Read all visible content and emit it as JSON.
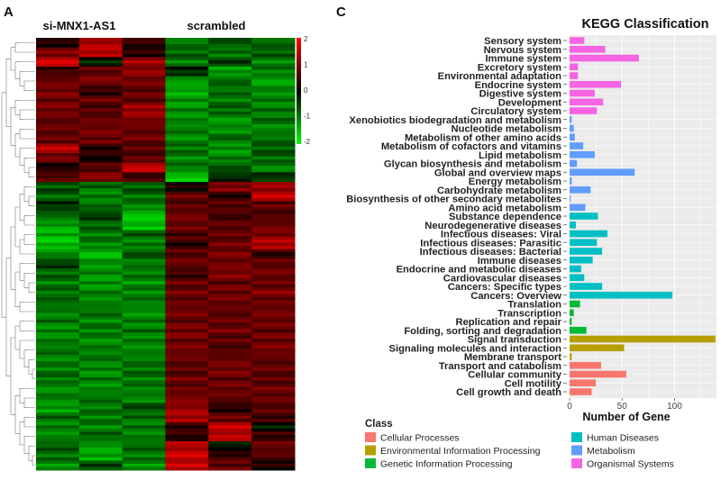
{
  "panels": {
    "a": "A",
    "c": "C"
  },
  "chart_data": [
    {
      "type": "heatmap",
      "column_groups": [
        "si-MNX1-AS1",
        "scrambled"
      ],
      "columns_per_group": 3,
      "colorbar": {
        "ticks": [
          "2",
          "1",
          "0",
          "-1",
          "-2"
        ],
        "range": [
          -2,
          2
        ],
        "low_color": "#00ff00",
        "mid_color": "#000000",
        "high_color": "#ff0000"
      },
      "row_dendrogram": true,
      "values": [
        [
          0.3,
          1.6,
          0.5,
          -1.2,
          -0.8,
          -1.0
        ],
        [
          1.2,
          1.8,
          0.4,
          -1.0,
          -1.1,
          -0.9
        ],
        [
          2.0,
          -0.3,
          1.5,
          -1.2,
          -0.6,
          -1.3
        ],
        [
          0.6,
          0.9,
          1.4,
          -0.4,
          -1.5,
          -1.2
        ],
        [
          1.0,
          1.2,
          1.1,
          -1.5,
          -1.0,
          -1.6
        ],
        [
          1.1,
          0.5,
          0.9,
          -1.6,
          -1.1,
          -1.3
        ],
        [
          1.0,
          1.0,
          0.9,
          -1.4,
          -1.2,
          -1.2
        ],
        [
          1.1,
          0.8,
          1.5,
          -1.3,
          -1.0,
          -1.1
        ],
        [
          0.9,
          1.0,
          1.2,
          -1.3,
          -1.5,
          -1.0
        ],
        [
          1.0,
          1.1,
          1.0,
          -1.2,
          -1.4,
          -1.3
        ],
        [
          1.0,
          1.0,
          1.1,
          -1.4,
          -1.0,
          -1.1
        ],
        [
          1.8,
          0.4,
          0.9,
          -1.1,
          -1.4,
          -0.9
        ],
        [
          1.1,
          0.2,
          0.9,
          -1.3,
          -1.2,
          -1.0
        ],
        [
          0.3,
          0.8,
          1.9,
          -1.2,
          -0.8,
          -1.3
        ],
        [
          0.8,
          1.3,
          0.6,
          -1.9,
          -0.4,
          -0.5
        ],
        [
          -0.8,
          -1.0,
          -0.9,
          0.2,
          1.2,
          1.5
        ],
        [
          -1.0,
          -1.2,
          -1.1,
          1.0,
          0.4,
          1.9
        ],
        [
          -0.5,
          -1.0,
          -1.3,
          0.9,
          0.8,
          0.9
        ],
        [
          -1.0,
          -0.6,
          -1.9,
          1.1,
          0.6,
          0.8
        ],
        [
          -1.5,
          -1.0,
          -1.8,
          1.0,
          0.9,
          1.0
        ],
        [
          -1.7,
          -1.2,
          -0.9,
          0.7,
          1.0,
          1.2
        ],
        [
          -1.8,
          -1.3,
          -1.2,
          0.4,
          1.1,
          1.7
        ],
        [
          -1.3,
          -1.8,
          -0.8,
          0.8,
          1.2,
          0.5
        ],
        [
          -0.6,
          -1.4,
          -1.2,
          1.0,
          1.1,
          0.9
        ],
        [
          -1.0,
          -1.3,
          -1.2,
          0.6,
          1.2,
          1.1
        ],
        [
          -1.2,
          -1.4,
          -1.4,
          1.0,
          0.9,
          1.0
        ],
        [
          -1.1,
          -1.2,
          -1.3,
          1.1,
          1.0,
          1.3
        ],
        [
          -1.0,
          -1.3,
          -1.2,
          1.0,
          1.0,
          1.0
        ],
        [
          -1.2,
          -1.1,
          -1.4,
          1.1,
          0.9,
          1.1
        ],
        [
          -1.1,
          -1.3,
          -1.2,
          0.9,
          1.0,
          1.0
        ],
        [
          -1.3,
          -1.2,
          -1.1,
          1.1,
          1.1,
          0.9
        ],
        [
          -1.2,
          -1.4,
          -1.2,
          1.0,
          0.9,
          1.0
        ],
        [
          -1.1,
          -1.2,
          -1.3,
          1.1,
          0.8,
          1.1
        ],
        [
          -1.3,
          -1.1,
          -1.2,
          1.0,
          1.0,
          0.9
        ],
        [
          -1.2,
          -1.3,
          -1.1,
          0.9,
          1.1,
          1.0
        ],
        [
          -1.1,
          -1.2,
          -1.2,
          1.1,
          0.9,
          0.9
        ],
        [
          -1.4,
          -1.3,
          -1.2,
          1.0,
          1.0,
          1.1
        ],
        [
          -1.2,
          -1.1,
          -1.3,
          1.2,
          0.9,
          1.0
        ],
        [
          -1.5,
          -1.2,
          -0.7,
          1.4,
          0.4,
          0.8
        ],
        [
          -1.0,
          -1.2,
          -1.0,
          1.6,
          1.0,
          0.6
        ],
        [
          -1.2,
          -1.3,
          -1.1,
          0.5,
          1.9,
          -0.2
        ],
        [
          -1.3,
          -1.0,
          -1.2,
          0.4,
          1.8,
          0.5
        ],
        [
          -0.9,
          -1.5,
          -1.0,
          1.7,
          -0.2,
          1.0
        ],
        [
          -1.1,
          -1.6,
          -1.2,
          2.0,
          0.5,
          0.8
        ],
        [
          -1.4,
          -0.7,
          -1.4,
          1.9,
          0.9,
          0.3
        ]
      ]
    },
    {
      "type": "bar",
      "orientation": "horizontal",
      "title": "KEGG Classification",
      "xlabel": "Number of Gene",
      "ylabel": "",
      "xlim": [
        0,
        140
      ],
      "xticks": [
        "0",
        "50",
        "100"
      ],
      "grid": true,
      "legend": {
        "title": "Class",
        "placement": "bottom"
      },
      "classes": [
        {
          "name": "Cellular Processes",
          "color": "#f8766d"
        },
        {
          "name": "Environmental Information Processing",
          "color": "#b79f00"
        },
        {
          "name": "Genetic Information Processing",
          "color": "#00ba38"
        },
        {
          "name": "Human Diseases",
          "color": "#00bfc4"
        },
        {
          "name": "Metabolism",
          "color": "#619cff"
        },
        {
          "name": "Organismal Systems",
          "color": "#f564e3"
        }
      ],
      "bars": [
        {
          "category": "Sensory system",
          "class": "Organismal Systems",
          "value": 14
        },
        {
          "category": "Nervous system",
          "class": "Organismal Systems",
          "value": 34
        },
        {
          "category": "Immune system",
          "class": "Organismal Systems",
          "value": 66
        },
        {
          "category": "Excretory system",
          "class": "Organismal Systems",
          "value": 8
        },
        {
          "category": "Environmental adaptation",
          "class": "Organismal Systems",
          "value": 8
        },
        {
          "category": "Endocrine system",
          "class": "Organismal Systems",
          "value": 49
        },
        {
          "category": "Digestive system",
          "class": "Organismal Systems",
          "value": 24
        },
        {
          "category": "Development",
          "class": "Organismal Systems",
          "value": 32
        },
        {
          "category": "Circulatory system",
          "class": "Organismal Systems",
          "value": 26
        },
        {
          "category": "Xenobiotics biodegradation and metabolism",
          "class": "Metabolism",
          "value": 2
        },
        {
          "category": "Nucleotide metabolism",
          "class": "Metabolism",
          "value": 4
        },
        {
          "category": "Metabolism of other amino acids",
          "class": "Metabolism",
          "value": 5
        },
        {
          "category": "Metabolism of cofactors and vitamins",
          "class": "Metabolism",
          "value": 13
        },
        {
          "category": "Lipid metabolism",
          "class": "Metabolism",
          "value": 24
        },
        {
          "category": "Glycan biosynthesis and metabolism",
          "class": "Metabolism",
          "value": 7
        },
        {
          "category": "Global and overview maps",
          "class": "Metabolism",
          "value": 62
        },
        {
          "category": "Energy metabolism",
          "class": "Metabolism",
          "value": 2
        },
        {
          "category": "Carbohydrate metabolism",
          "class": "Metabolism",
          "value": 20
        },
        {
          "category": "Biosynthesis of other secondary metabolites",
          "class": "Metabolism",
          "value": 1
        },
        {
          "category": "Amino acid metabolism",
          "class": "Metabolism",
          "value": 15
        },
        {
          "category": "Substance dependence",
          "class": "Human Diseases",
          "value": 27
        },
        {
          "category": "Neurodegenerative diseases",
          "class": "Human Diseases",
          "value": 6
        },
        {
          "category": "Infectious diseases: Viral",
          "class": "Human Diseases",
          "value": 36
        },
        {
          "category": "Infectious diseases: Parasitic",
          "class": "Human Diseases",
          "value": 26
        },
        {
          "category": "Infectious diseases: Bacterial",
          "class": "Human Diseases",
          "value": 31
        },
        {
          "category": "Immune diseases",
          "class": "Human Diseases",
          "value": 22
        },
        {
          "category": "Endocrine and metabolic diseases",
          "class": "Human Diseases",
          "value": 11
        },
        {
          "category": "Cardiovascular diseases",
          "class": "Human Diseases",
          "value": 14
        },
        {
          "category": "Cancers: Specific types",
          "class": "Human Diseases",
          "value": 31
        },
        {
          "category": "Cancers: Overview",
          "class": "Human Diseases",
          "value": 98
        },
        {
          "category": "Translation",
          "class": "Genetic Information Processing",
          "value": 10
        },
        {
          "category": "Transcription",
          "class": "Genetic Information Processing",
          "value": 4
        },
        {
          "category": "Replication and repair",
          "class": "Genetic Information Processing",
          "value": 2
        },
        {
          "category": "Folding, sorting and degradation",
          "class": "Genetic Information Processing",
          "value": 16
        },
        {
          "category": "Signal transduction",
          "class": "Environmental Information Processing",
          "value": 139
        },
        {
          "category": "Signaling molecules and interaction",
          "class": "Environmental Information Processing",
          "value": 52
        },
        {
          "category": "Membrane transport",
          "class": "Environmental Information Processing",
          "value": 2
        },
        {
          "category": "Transport and catabolism",
          "class": "Cellular Processes",
          "value": 30
        },
        {
          "category": "Cellular community",
          "class": "Cellular Processes",
          "value": 54
        },
        {
          "category": "Cell motility",
          "class": "Cellular Processes",
          "value": 25
        },
        {
          "category": "Cell growth and death",
          "class": "Cellular Processes",
          "value": 21
        }
      ]
    }
  ]
}
